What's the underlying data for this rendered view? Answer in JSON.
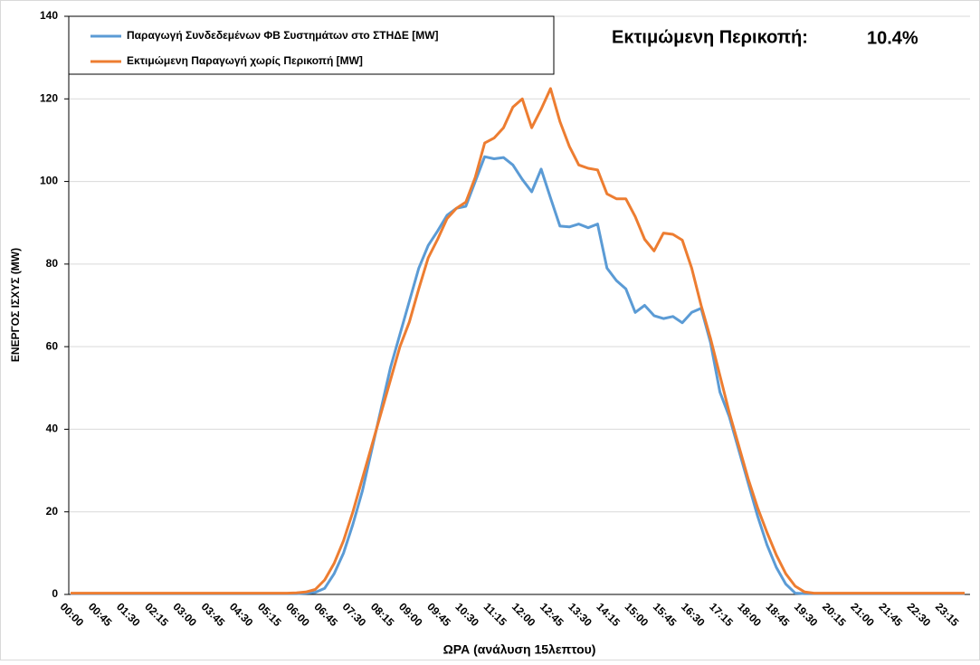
{
  "chart_data": {
    "type": "line",
    "y_label": "ΕΝΕΡΓΟΣ ΙΣΧΥΣ (MW)",
    "x_label": "ΩΡΑ (ανάλυση 15λεπτου)",
    "annotations": [
      "Εκτιμώμενη Περικοπή:",
      "10.4%"
    ],
    "categories": [
      "00:00",
      null,
      null,
      "00:45",
      null,
      null,
      "01:30",
      null,
      null,
      "02:15",
      null,
      null,
      "03:00",
      null,
      null,
      "03:45",
      null,
      null,
      "04:30",
      null,
      null,
      "05:15",
      null,
      null,
      "06:00",
      null,
      null,
      "06:45",
      null,
      null,
      "07:30",
      null,
      null,
      "08:15",
      null,
      null,
      "09:00",
      null,
      null,
      "09:45",
      null,
      null,
      "10:30",
      null,
      null,
      "11:15",
      null,
      null,
      "12:00",
      null,
      null,
      "12:45",
      null,
      null,
      "13:30",
      null,
      null,
      "14:15",
      null,
      null,
      "15:00",
      null,
      null,
      "15:45",
      null,
      null,
      "16:30",
      null,
      null,
      "17:15",
      null,
      null,
      "18:00",
      null,
      null,
      "18:45",
      null,
      null,
      "19:30",
      null,
      null,
      "20:15",
      null,
      null,
      "21:00",
      null,
      null,
      "21:45",
      null,
      null,
      "22:30",
      null,
      null,
      "23:15",
      null,
      null
    ],
    "series": [
      {
        "name": "Παραγωγή Συνδεδεμένων ΦΒ Συστημάτων στο ΣΤΗΔΕ [MW]",
        "color": "#5b9bd5",
        "values": [
          0.2,
          0.2,
          0.2,
          0.2,
          0.2,
          0.2,
          0.2,
          0.2,
          0.2,
          0.2,
          0.2,
          0.2,
          0.2,
          0.2,
          0.2,
          0.2,
          0.2,
          0.2,
          0.2,
          0.2,
          0.2,
          0.2,
          0.2,
          0.2,
          0.2,
          0.3,
          0.5,
          1.5,
          5,
          10,
          17,
          25,
          35,
          45,
          55,
          63,
          71,
          79,
          84.5,
          88,
          91.8,
          93.5,
          94,
          100,
          106,
          105.5,
          105.8,
          104,
          100.5,
          97.5,
          103,
          96,
          89.2,
          89,
          89.7,
          88.8,
          89.7,
          79,
          76,
          74,
          68.3,
          70,
          67.5,
          66.8,
          67.3,
          65.8,
          68.3,
          69.3,
          61,
          49,
          43,
          35,
          27,
          19,
          12,
          6.5,
          2.5,
          0.3,
          0.2,
          0.2,
          0.2,
          0.2,
          0.2,
          0.2,
          0.2,
          0.2,
          0.2,
          0.2,
          0.2,
          0.2,
          0.2,
          0.2,
          0.2,
          0.2,
          0.2,
          0.2
        ]
      },
      {
        "name": "Εκτιμώμενη Παραγωγή χωρίς Περικοπή [MW]",
        "color": "#ed7d31",
        "values": [
          0.3,
          0.3,
          0.3,
          0.3,
          0.3,
          0.3,
          0.3,
          0.3,
          0.3,
          0.3,
          0.3,
          0.3,
          0.3,
          0.3,
          0.3,
          0.3,
          0.3,
          0.3,
          0.3,
          0.3,
          0.3,
          0.3,
          0.3,
          0.3,
          0.4,
          0.6,
          1.2,
          3.5,
          7.5,
          13,
          20,
          28,
          36,
          44,
          52,
          60,
          66,
          74,
          81.5,
          86,
          91,
          93.5,
          95,
          101,
          109.3,
          110.5,
          113,
          118,
          120,
          113,
          117.5,
          122.5,
          114.5,
          108.5,
          104,
          103.2,
          102.8,
          97,
          95.8,
          95.8,
          91.5,
          86,
          83.2,
          87.5,
          87.2,
          85.8,
          79,
          70,
          62,
          53,
          44,
          36,
          28,
          21,
          15,
          9.5,
          5,
          2,
          0.6,
          0.3,
          0.3,
          0.3,
          0.3,
          0.3,
          0.3,
          0.3,
          0.3,
          0.3,
          0.3,
          0.3,
          0.3,
          0.3,
          0.3,
          0.3,
          0.3,
          0.3
        ]
      }
    ],
    "ylim": [
      0,
      140
    ],
    "yticks": [
      0,
      20,
      40,
      60,
      80,
      100,
      120,
      140
    ],
    "grid": true,
    "legend": "top-left"
  }
}
